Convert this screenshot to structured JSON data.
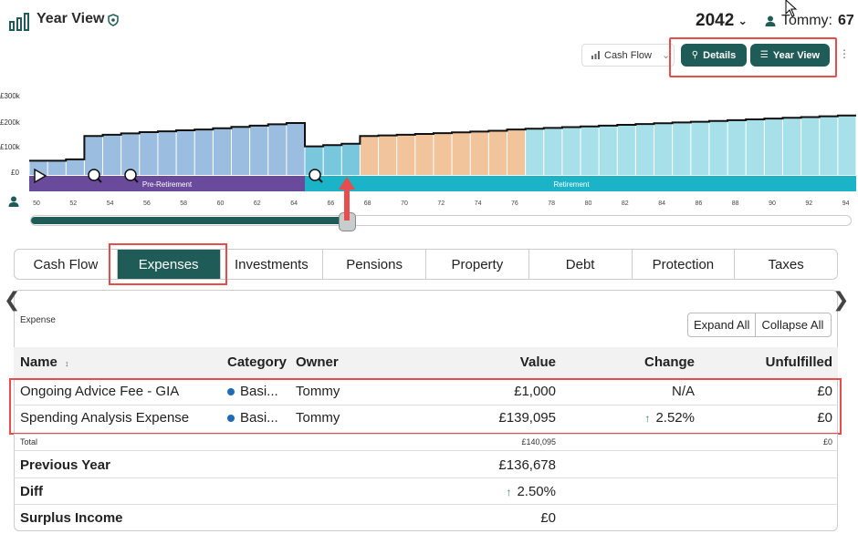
{
  "header": {
    "title": "Year View",
    "year": "2042",
    "user_name": "Tommy:",
    "user_age": "67"
  },
  "toolbar": {
    "cash_flow_label": "Cash Flow",
    "details_label": "Details",
    "year_view_label": "Year View"
  },
  "chart_data": {
    "type": "bar",
    "y_tick_labels": [
      "£300k",
      "£200k",
      "£100k",
      "£0"
    ],
    "x_tick_labels": [
      "50",
      "52",
      "54",
      "56",
      "58",
      "60",
      "62",
      "64",
      "66",
      "68",
      "70",
      "72",
      "74",
      "76",
      "78",
      "80",
      "82",
      "84",
      "86",
      "88",
      "90",
      "92",
      "94"
    ],
    "bands": [
      "Pre-Retirement",
      "Retirement"
    ],
    "colors": {
      "pre_retirement": "#9bbde0",
      "mid": "#79c7dc",
      "amber": "#f2c49c",
      "retirement": "#a8e0ea",
      "band_pre": "#6a4a9a",
      "band_ret": "#1ab3c8",
      "accent": "#1f5c57",
      "highlight": "#e84c4c"
    },
    "bars": [
      {
        "age": 50,
        "value": 55,
        "phase": "pre"
      },
      {
        "age": 51,
        "value": 55,
        "phase": "pre"
      },
      {
        "age": 52,
        "value": 60,
        "phase": "pre"
      },
      {
        "age": 53,
        "value": 150,
        "phase": "pre"
      },
      {
        "age": 54,
        "value": 155,
        "phase": "pre"
      },
      {
        "age": 55,
        "value": 160,
        "phase": "pre"
      },
      {
        "age": 56,
        "value": 165,
        "phase": "pre"
      },
      {
        "age": 57,
        "value": 168,
        "phase": "pre"
      },
      {
        "age": 58,
        "value": 172,
        "phase": "pre"
      },
      {
        "age": 59,
        "value": 175,
        "phase": "pre"
      },
      {
        "age": 60,
        "value": 180,
        "phase": "pre"
      },
      {
        "age": 61,
        "value": 185,
        "phase": "pre"
      },
      {
        "age": 62,
        "value": 190,
        "phase": "pre"
      },
      {
        "age": 63,
        "value": 195,
        "phase": "pre"
      },
      {
        "age": 64,
        "value": 200,
        "phase": "pre"
      },
      {
        "age": 65,
        "value": 110,
        "phase": "mid"
      },
      {
        "age": 66,
        "value": 115,
        "phase": "mid"
      },
      {
        "age": 67,
        "value": 120,
        "phase": "mid"
      },
      {
        "age": 68,
        "value": 150,
        "phase": "amber"
      },
      {
        "age": 69,
        "value": 152,
        "phase": "amber"
      },
      {
        "age": 70,
        "value": 155,
        "phase": "amber"
      },
      {
        "age": 71,
        "value": 158,
        "phase": "amber"
      },
      {
        "age": 72,
        "value": 161,
        "phase": "amber"
      },
      {
        "age": 73,
        "value": 164,
        "phase": "amber"
      },
      {
        "age": 74,
        "value": 167,
        "phase": "amber"
      },
      {
        "age": 75,
        "value": 170,
        "phase": "amber"
      },
      {
        "age": 76,
        "value": 175,
        "phase": "amber"
      },
      {
        "age": 77,
        "value": 178,
        "phase": "ret"
      },
      {
        "age": 78,
        "value": 181,
        "phase": "ret"
      },
      {
        "age": 79,
        "value": 184,
        "phase": "ret"
      },
      {
        "age": 80,
        "value": 187,
        "phase": "ret"
      },
      {
        "age": 81,
        "value": 190,
        "phase": "ret"
      },
      {
        "age": 82,
        "value": 193,
        "phase": "ret"
      },
      {
        "age": 83,
        "value": 196,
        "phase": "ret"
      },
      {
        "age": 84,
        "value": 199,
        "phase": "ret"
      },
      {
        "age": 85,
        "value": 202,
        "phase": "ret"
      },
      {
        "age": 86,
        "value": 205,
        "phase": "ret"
      },
      {
        "age": 87,
        "value": 208,
        "phase": "ret"
      },
      {
        "age": 88,
        "value": 211,
        "phase": "ret"
      },
      {
        "age": 89,
        "value": 214,
        "phase": "ret"
      },
      {
        "age": 90,
        "value": 217,
        "phase": "ret"
      },
      {
        "age": 91,
        "value": 220,
        "phase": "ret"
      },
      {
        "age": 92,
        "value": 223,
        "phase": "ret"
      },
      {
        "age": 93,
        "value": 226,
        "phase": "ret"
      },
      {
        "age": 94,
        "value": 229,
        "phase": "ret"
      }
    ],
    "selected_age": 67
  },
  "tabs": [
    "Cash Flow",
    "Expenses",
    "Investments",
    "Pensions",
    "Property",
    "Debt",
    "Protection",
    "Taxes"
  ],
  "active_tab": "Expenses",
  "expenses": {
    "title": "Expense",
    "expand_all": "Expand All",
    "collapse_all": "Collapse All",
    "columns": [
      "Name",
      "Category",
      "Owner",
      "Value",
      "Change",
      "Unfulfilled"
    ],
    "rows": [
      {
        "name": "Ongoing Advice Fee - GIA",
        "category": "Basi...",
        "owner": "Tommy",
        "value": "£1,000",
        "change": "N/A",
        "unfulfilled": "£0"
      },
      {
        "name": "Spending Analysis Expense",
        "category": "Basi...",
        "owner": "Tommy",
        "value": "£139,095",
        "change": "2.52%",
        "unfulfilled": "£0"
      }
    ],
    "total": {
      "label": "Total",
      "value": "£140,095",
      "unfulfilled": "£0"
    },
    "previous_year": {
      "label": "Previous Year",
      "value": "£136,678"
    },
    "diff": {
      "label": "Diff",
      "value": "2.50%"
    },
    "surplus": {
      "label": "Surplus Income",
      "value": "£0"
    }
  }
}
